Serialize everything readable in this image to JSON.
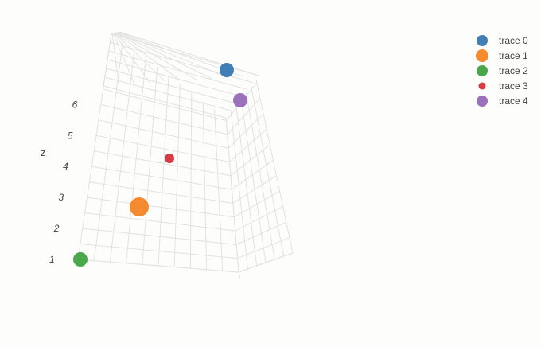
{
  "chart_data": {
    "type": "scatter3d",
    "z_axis": {
      "title": "z",
      "ticks": [
        "1",
        "2",
        "3",
        "4",
        "5",
        "6"
      ]
    },
    "series": [
      {
        "name": "trace 0",
        "z": 6.5,
        "size": "medium",
        "color": "#3f7fb5"
      },
      {
        "name": "trace 1",
        "z": 2.0,
        "size": "large",
        "color": "#f58b2f"
      },
      {
        "name": "trace 2",
        "z": 1.0,
        "size": "medium",
        "color": "#4aa84a"
      },
      {
        "name": "trace 3",
        "z": 3.5,
        "size": "small",
        "color": "#d63c44"
      },
      {
        "name": "trace 4",
        "z": 5.5,
        "size": "medium",
        "color": "#9b70bd"
      }
    ],
    "legend": {
      "position": "top-right"
    },
    "grid": true
  }
}
